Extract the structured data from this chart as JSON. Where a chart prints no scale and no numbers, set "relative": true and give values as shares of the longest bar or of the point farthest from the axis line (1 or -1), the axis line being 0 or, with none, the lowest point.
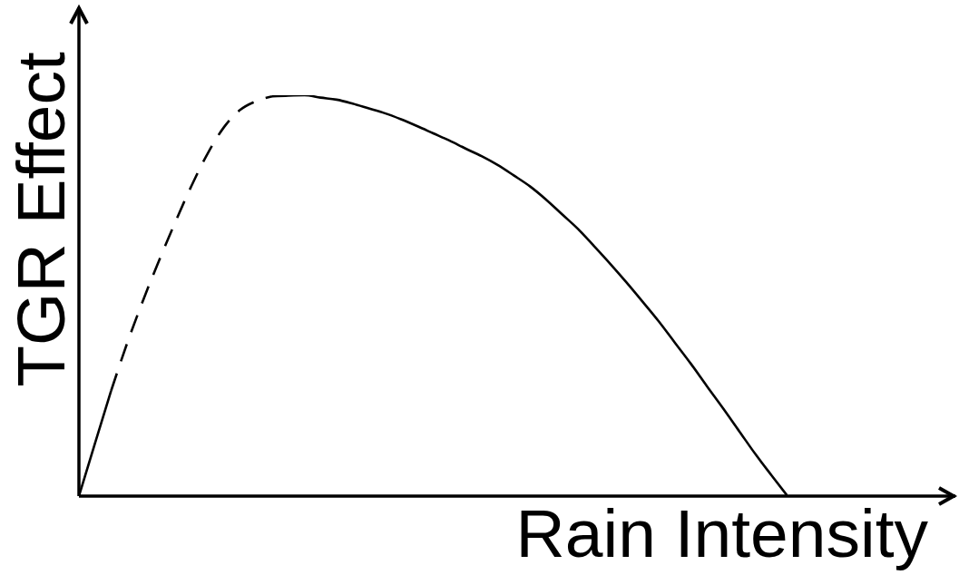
{
  "chart_data": {
    "type": "line",
    "xlabel": "Rain Intensity",
    "ylabel": "TGR Effect",
    "relative": true,
    "marker": "none",
    "categories": [
      null,
      null,
      null,
      null,
      null,
      null,
      null,
      null,
      null,
      null,
      null,
      null,
      null,
      null,
      null,
      null,
      null,
      null,
      null,
      null,
      null,
      null,
      null,
      null,
      null,
      null,
      null,
      null,
      null,
      null,
      null,
      null,
      null,
      null,
      null,
      null,
      null,
      null,
      null,
      null,
      null,
      null,
      null,
      null,
      null
    ],
    "series": [
      {
        "color": "#000000",
        "line_style": "solid",
        "values": [
          0,
          0.132,
          0.263,
          null,
          null,
          null,
          null,
          null,
          null,
          null,
          null,
          null,
          null,
          null,
          null,
          null,
          null,
          null,
          null,
          null,
          null,
          null,
          null,
          null,
          null,
          null,
          null,
          null,
          null,
          null,
          null,
          null,
          null,
          null,
          null,
          null,
          null,
          null,
          null,
          null,
          null,
          null,
          null,
          null,
          null
        ]
      },
      {
        "color": "#000000",
        "line_style": "dashed",
        "values": [
          null,
          null,
          0.263,
          0.382,
          0.49,
          0.59,
          0.685,
          0.775,
          0.855,
          0.92,
          0.963,
          0.985,
          0.997,
          null,
          null,
          null,
          null,
          null,
          null,
          null,
          null,
          null,
          null,
          null,
          null,
          null,
          null,
          null,
          null,
          null,
          null,
          null,
          null,
          null,
          null,
          null,
          null,
          null,
          null,
          null,
          null,
          null,
          null,
          null,
          null
        ]
      },
      {
        "color": "#000000",
        "line_style": "solid",
        "values": [
          null,
          null,
          null,
          null,
          null,
          null,
          null,
          null,
          null,
          null,
          null,
          null,
          0.997,
          0.999,
          1,
          0.994,
          0.989,
          0.979,
          0.967,
          0.955,
          0.94,
          0.923,
          0.905,
          0.887,
          0.867,
          0.848,
          0.826,
          0.8,
          0.773,
          0.74,
          0.703,
          0.666,
          0.623,
          0.579,
          0.533,
          0.485,
          0.436,
          0.383,
          0.33,
          0.274,
          0.219,
          0.162,
          0.105,
          0.052,
          0
        ]
      }
    ]
  }
}
